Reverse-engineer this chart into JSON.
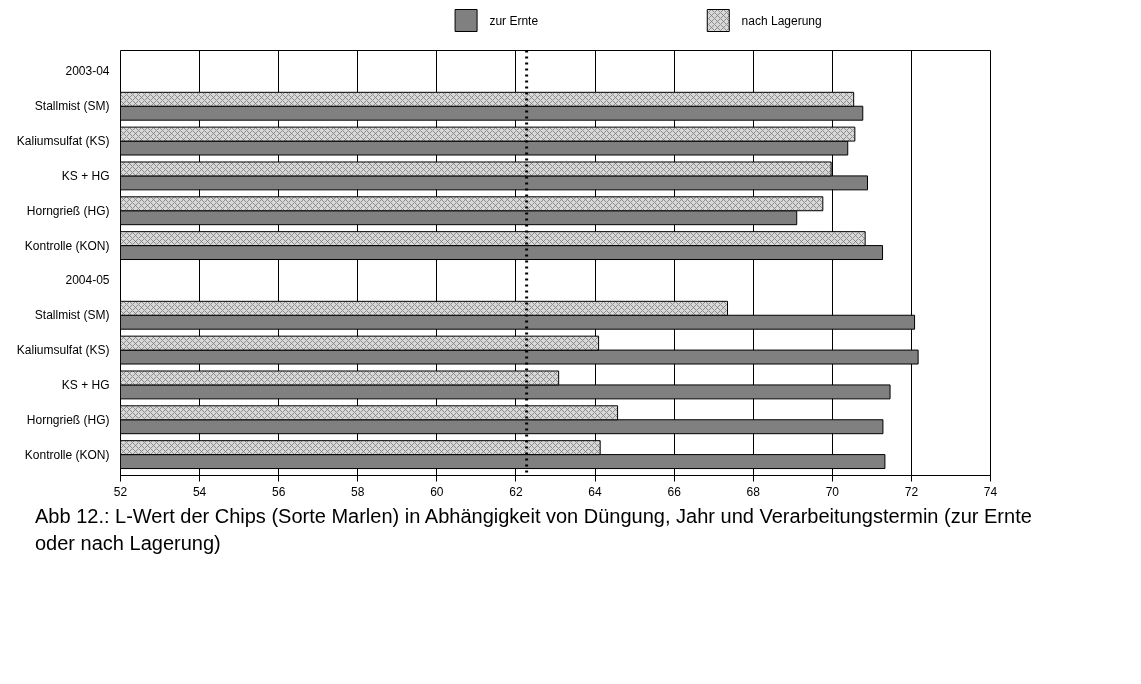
{
  "chart_data": {
    "type": "bar",
    "orientation": "horizontal",
    "categories": [
      "2003-04",
      "Stallmist (SM)",
      "Kaliumsulfat (KS)",
      "KS + HG",
      "Horngrieß (HG)",
      "Kontrolle (KON)",
      "2004-05",
      "Stallmist (SM)",
      "Kaliumsulfat (KS)",
      "KS + HG",
      "Horngrieß (HG)",
      "Kontrolle (KON)"
    ],
    "series": [
      {
        "name": "zur Ernte",
        "color": "#808080",
        "values": [
          null,
          70.77,
          70.39,
          70.89,
          69.1,
          71.27,
          null,
          72.08,
          72.17,
          71.46,
          71.28,
          71.33
        ]
      },
      {
        "name": "nach Lagerung",
        "color": "#d8d8d8",
        "values": [
          null,
          70.54,
          70.57,
          69.97,
          69.76,
          70.83,
          null,
          67.35,
          64.09,
          63.08,
          64.57,
          64.13
        ]
      }
    ],
    "xlim": [
      52,
      74
    ],
    "xticks": [
      52,
      54,
      56,
      58,
      60,
      62,
      64,
      66,
      68,
      70,
      72,
      74
    ],
    "grid": "x",
    "legend": "top",
    "ref_lines": [
      {
        "axis": "x",
        "value": 62.27,
        "line_style": "dotted",
        "color": "#000000"
      }
    ],
    "annotations": [
      "Abb 12.: L-Wert der Chips (Sorte Marlen) in Abhängigkeit von Düngung, Jahr und Verarbeitungstermin (zur Ernte oder nach Lagerung)"
    ]
  }
}
